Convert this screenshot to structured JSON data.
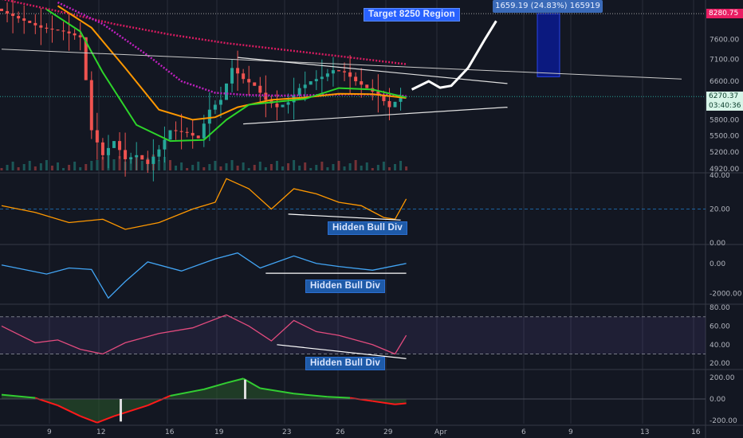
{
  "colors": {
    "bg": "#131722",
    "grid": "#2a2e39",
    "up": "#26a69a",
    "down": "#ef5350",
    "ema_fast": "#2dd52a",
    "ema_slow": "#ff9800",
    "ema_mid": "#e05a8a",
    "ma_long": "#e91e63",
    "ma_dotted": "#d81b60",
    "rsi": "#e34b7e",
    "ind1": "#ff9800",
    "ind2": "#42a5f5",
    "macd_pos": "#32cd32",
    "macd_neg": "#ff1a1a"
  },
  "annotations": {
    "target": "Target 8250 Region",
    "measure": "1659.19 (24.83%) 165919",
    "hidden_bull_1": "Hidden Bull Div",
    "hidden_bull_2": "Hidden Bull Div",
    "hidden_bull_3": "Hidden Bull Div"
  },
  "price_tags": {
    "target_price": "8280.75",
    "last_price": "6270.37",
    "countdown": "03:40:36"
  },
  "chart_data": {
    "type": "candlestick",
    "x_ticks": [
      "9",
      "12",
      "16",
      "19",
      "23",
      "26",
      "29",
      "Apr",
      "6",
      "9",
      "13",
      "16"
    ],
    "price_axis": {
      "ticks": [
        "7600.00",
        "7100.00",
        "6600.00",
        "5800.00",
        "5500.00",
        "5200.00",
        "4920.00"
      ],
      "scale": "log",
      "range": [
        4880,
        8600
      ]
    },
    "price_path": [
      [
        0,
        8420
      ],
      [
        4,
        8150
      ],
      [
        8,
        7900
      ],
      [
        12,
        7800
      ],
      [
        15,
        7650
      ],
      [
        17,
        5600
      ],
      [
        19,
        5150
      ],
      [
        21,
        5400
      ],
      [
        23,
        5080
      ],
      [
        25,
        5150
      ],
      [
        27,
        5000
      ],
      [
        29,
        5250
      ],
      [
        31,
        5600
      ],
      [
        34,
        5550
      ],
      [
        36,
        5450
      ],
      [
        38,
        6000
      ],
      [
        40,
        6200
      ],
      [
        42,
        6900
      ],
      [
        44,
        6650
      ],
      [
        46,
        6500
      ],
      [
        48,
        6200
      ],
      [
        50,
        6050
      ],
      [
        52,
        6150
      ],
      [
        54,
        6450
      ],
      [
        56,
        6600
      ],
      [
        58,
        6700
      ],
      [
        60,
        6850
      ],
      [
        62,
        6800
      ],
      [
        64,
        6600
      ],
      [
        66,
        6450
      ],
      [
        68,
        6300
      ],
      [
        70,
        6050
      ],
      [
        72,
        6270
      ]
    ],
    "projection_path": [
      [
        73,
        6420
      ],
      [
        76,
        6600
      ],
      [
        78,
        6460
      ],
      [
        80,
        6500
      ],
      [
        83,
        6900
      ],
      [
        86,
        7600
      ],
      [
        88,
        8080
      ]
    ],
    "ma_slow_dotted": [
      [
        0,
        8700
      ],
      [
        10,
        8350
      ],
      [
        20,
        8000
      ],
      [
        30,
        7720
      ],
      [
        40,
        7500
      ],
      [
        50,
        7340
      ],
      [
        60,
        7180
      ],
      [
        72,
        6990
      ]
    ],
    "ema_fast": [
      [
        8,
        8400
      ],
      [
        14,
        7800
      ],
      [
        18,
        6800
      ],
      [
        24,
        5700
      ],
      [
        30,
        5400
      ],
      [
        36,
        5420
      ],
      [
        40,
        5800
      ],
      [
        44,
        6100
      ],
      [
        48,
        6150
      ],
      [
        54,
        6220
      ],
      [
        60,
        6450
      ],
      [
        66,
        6420
      ],
      [
        72,
        6250
      ]
    ],
    "ema_slow": [
      [
        10,
        8500
      ],
      [
        16,
        7900
      ],
      [
        22,
        6900
      ],
      [
        28,
        6000
      ],
      [
        34,
        5800
      ],
      [
        38,
        5850
      ],
      [
        42,
        6050
      ],
      [
        48,
        6200
      ],
      [
        54,
        6250
      ],
      [
        60,
        6330
      ],
      [
        66,
        6320
      ],
      [
        72,
        6240
      ]
    ],
    "ema_purple": [
      [
        10,
        8600
      ],
      [
        18,
        8000
      ],
      [
        26,
        7200
      ],
      [
        32,
        6600
      ],
      [
        38,
        6350
      ],
      [
        44,
        6300
      ],
      [
        50,
        6290
      ],
      [
        56,
        6300
      ],
      [
        62,
        6320
      ],
      [
        68,
        6310
      ],
      [
        72,
        6280
      ]
    ],
    "resistance_line": [
      [
        0,
        7350
      ],
      [
        121,
        6650
      ]
    ],
    "triangle_upper": [
      [
        42,
        7150
      ],
      [
        90,
        6550
      ]
    ],
    "triangle_lower": [
      [
        43,
        5720
      ],
      [
        90,
        6050
      ]
    ],
    "target_box": {
      "x0": 93,
      "x1": 96,
      "low": 6700,
      "high": 8280,
      "label_y": 8250
    },
    "volume_note": "histogram at bottom of price pane",
    "indicators": [
      {
        "name": "",
        "color": "#ff9800",
        "ticks": [
          "40.00",
          "20.00",
          "0.00"
        ],
        "range": [
          0,
          40
        ],
        "reference": 20,
        "values": [
          [
            0,
            22
          ],
          [
            6,
            18
          ],
          [
            12,
            12
          ],
          [
            18,
            14
          ],
          [
            22,
            8
          ],
          [
            28,
            12
          ],
          [
            34,
            20
          ],
          [
            38,
            24
          ],
          [
            40,
            38
          ],
          [
            44,
            32
          ],
          [
            48,
            20
          ],
          [
            52,
            32
          ],
          [
            56,
            29
          ],
          [
            60,
            24
          ],
          [
            64,
            22
          ],
          [
            68,
            15
          ],
          [
            70,
            14
          ],
          [
            72,
            26
          ]
        ],
        "divergence": [
          [
            51,
            17
          ],
          [
            71,
            13.5
          ]
        ]
      },
      {
        "name": "",
        "color": "#42a5f5",
        "ticks": [
          "0.00",
          "-2000.00"
        ],
        "range": [
          -2600,
          1100
        ],
        "values": [
          [
            0,
            -100
          ],
          [
            8,
            -700
          ],
          [
            12,
            -300
          ],
          [
            16,
            -400
          ],
          [
            19,
            -2300
          ],
          [
            22,
            -1200
          ],
          [
            26,
            100
          ],
          [
            32,
            -500
          ],
          [
            38,
            300
          ],
          [
            42,
            700
          ],
          [
            46,
            -300
          ],
          [
            52,
            500
          ],
          [
            56,
            0
          ],
          [
            60,
            -200
          ],
          [
            66,
            -450
          ],
          [
            72,
            0
          ]
        ],
        "divergence": [
          [
            47,
            -650
          ],
          [
            72,
            -650
          ]
        ]
      },
      {
        "name": "",
        "color": "#e34b7e",
        "ticks": [
          "80.00",
          "60.00",
          "40.00",
          "20.00"
        ],
        "range": [
          15,
          80
        ],
        "band": [
          30,
          70
        ],
        "values": [
          [
            0,
            60
          ],
          [
            6,
            42
          ],
          [
            10,
            45
          ],
          [
            14,
            35
          ],
          [
            18,
            30
          ],
          [
            22,
            42
          ],
          [
            28,
            52
          ],
          [
            34,
            58
          ],
          [
            40,
            72
          ],
          [
            44,
            60
          ],
          [
            48,
            44
          ],
          [
            52,
            66
          ],
          [
            56,
            54
          ],
          [
            60,
            50
          ],
          [
            66,
            40
          ],
          [
            70,
            30
          ],
          [
            72,
            50
          ]
        ],
        "divergence": [
          [
            49,
            40
          ],
          [
            72,
            25
          ]
        ]
      },
      {
        "name": "",
        "type": "histogram",
        "ticks": [
          "200.00",
          "0.00",
          "-200.00"
        ],
        "range": [
          -230,
          230
        ],
        "values": [
          [
            0,
            40
          ],
          [
            6,
            10
          ],
          [
            10,
            -60
          ],
          [
            14,
            -160
          ],
          [
            17,
            -220
          ],
          [
            20,
            -160
          ],
          [
            26,
            -60
          ],
          [
            30,
            30
          ],
          [
            36,
            90
          ],
          [
            40,
            150
          ],
          [
            43,
            190
          ],
          [
            46,
            100
          ],
          [
            52,
            50
          ],
          [
            58,
            20
          ],
          [
            62,
            10
          ],
          [
            66,
            -20
          ],
          [
            70,
            -50
          ],
          [
            72,
            -40
          ]
        ]
      }
    ]
  }
}
